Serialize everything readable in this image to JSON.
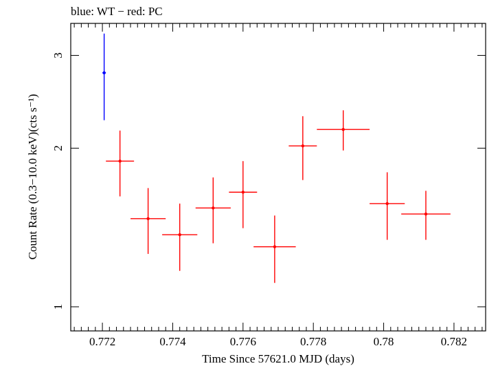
{
  "chart_data": {
    "type": "scatter",
    "title": "blue: WT − red: PC",
    "xlabel": "Time Since 57621.0 MJD (days)",
    "ylabel": "Count Rate (0.3−10.0 keV)(cts s⁻¹)",
    "xlim": [
      0.7711,
      0.7829
    ],
    "ylim": [
      0.9,
      3.45
    ],
    "y_scale": "log",
    "x_ticks": [
      0.772,
      0.774,
      0.776,
      0.778,
      0.78,
      0.782
    ],
    "x_tick_labels": [
      "0.772",
      "0.774",
      "0.776",
      "0.778",
      "0.78",
      "0.782"
    ],
    "y_ticks": [
      1,
      2,
      3
    ],
    "y_tick_labels": [
      "1",
      "2",
      "3"
    ],
    "grid": false,
    "series": [
      {
        "color": "#0000ff",
        "points": [
          {
            "x": 0.77205,
            "xerr": 5e-05,
            "y": 2.78,
            "yerr_low": 0.52,
            "yerr_high": 0.52
          }
        ]
      },
      {
        "color": "#ff0000",
        "points": [
          {
            "x": 0.7725,
            "xerr": 0.0004,
            "y": 1.89,
            "yerr_low": 0.27,
            "yerr_high": 0.27
          },
          {
            "x": 0.7733,
            "xerr": 0.0005,
            "y": 1.47,
            "yerr_low": 0.21,
            "yerr_high": 0.21
          },
          {
            "x": 0.7742,
            "xerr": 0.0005,
            "y": 1.37,
            "yerr_low": 0.2,
            "yerr_high": 0.2
          },
          {
            "x": 0.77515,
            "xerr": 0.0005,
            "y": 1.54,
            "yerr_low": 0.22,
            "yerr_high": 0.22
          },
          {
            "x": 0.776,
            "xerr": 0.0004,
            "y": 1.65,
            "yerr_low": 0.24,
            "yerr_high": 0.24
          },
          {
            "x": 0.7769,
            "xerr": 0.0006,
            "y": 1.3,
            "yerr_low": 0.19,
            "yerr_high": 0.19
          },
          {
            "x": 0.7777,
            "xerr": 0.0004,
            "y": 2.02,
            "yerr_low": 0.28,
            "yerr_high": 0.28
          },
          {
            "x": 0.77885,
            "xerr": 0.00075,
            "y": 2.17,
            "yerr_low": 0.19,
            "yerr_high": 0.19
          },
          {
            "x": 0.7801,
            "xerr": 0.0005,
            "y": 1.57,
            "yerr_low": 0.23,
            "yerr_high": 0.23
          },
          {
            "x": 0.7812,
            "xerr": 0.0007,
            "y": 1.5,
            "yerr_low": 0.16,
            "yerr_high": 0.16
          }
        ]
      }
    ]
  }
}
